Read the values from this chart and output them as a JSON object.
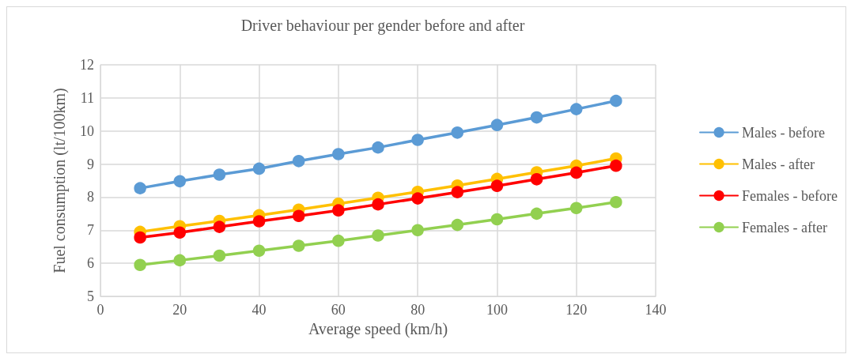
{
  "chart_data": {
    "type": "line",
    "title": "Driver behaviour per gender before and after",
    "xlabel": "Average speed (km/h)",
    "ylabel": "Fuel consumption (lt/100km)",
    "x": [
      10,
      20,
      30,
      40,
      50,
      60,
      70,
      80,
      90,
      100,
      110,
      120,
      130
    ],
    "xlim": [
      0,
      140
    ],
    "xticks": [
      0,
      20,
      40,
      60,
      80,
      100,
      120,
      140
    ],
    "ylim": [
      5,
      12
    ],
    "yticks": [
      5,
      6,
      7,
      8,
      9,
      10,
      11,
      12
    ],
    "grid": true,
    "legend": "right",
    "marker": "circle",
    "series": [
      {
        "name": "Males - before",
        "color": "#5b9bd5",
        "values": [
          8.27,
          8.48,
          8.68,
          8.86,
          9.09,
          9.3,
          9.5,
          9.73,
          9.95,
          10.18,
          10.41,
          10.66,
          10.91
        ]
      },
      {
        "name": "Males - after",
        "color": "#ffc000",
        "values": [
          6.95,
          7.12,
          7.28,
          7.45,
          7.62,
          7.8,
          7.98,
          8.16,
          8.35,
          8.55,
          8.75,
          8.95,
          9.17
        ]
      },
      {
        "name": "Females - before",
        "color": "#ff0000",
        "values": [
          6.78,
          6.93,
          7.1,
          7.27,
          7.43,
          7.6,
          7.78,
          7.96,
          8.15,
          8.34,
          8.54,
          8.74,
          8.95
        ]
      },
      {
        "name": "Females - after",
        "color": "#92d050",
        "values": [
          5.95,
          6.09,
          6.23,
          6.38,
          6.53,
          6.68,
          6.84,
          7.0,
          7.16,
          7.33,
          7.5,
          7.67,
          7.85
        ]
      }
    ]
  }
}
